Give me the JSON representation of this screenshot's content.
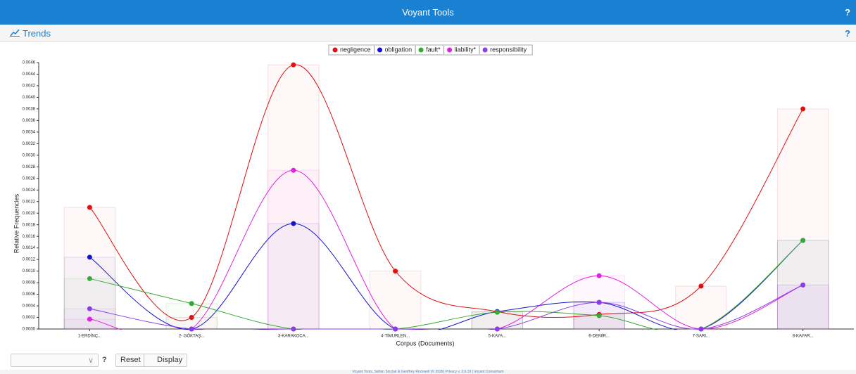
{
  "header": {
    "title": "Voyant Tools",
    "help": "?"
  },
  "panel": {
    "title": "Trends",
    "help": "?"
  },
  "chart_data": {
    "type": "line",
    "x_label": "Corpus (Documents)",
    "y_label": "Relative Frequencies",
    "categories": [
      "1-ERDİNÇ...",
      "2- GÖKTAŞ...",
      "3-KARAKOCA...",
      "4-TİMURLEN...",
      "5-KAYA...",
      "6-DEMİR...",
      "7-SARI...",
      "8-KAYAR..."
    ],
    "series": [
      {
        "name": "negligence",
        "color": "#e01010",
        "values": [
          0.0021,
          0.0002,
          0.00456,
          0.001,
          0.0003,
          0.00025,
          0.00074,
          0.0038
        ]
      },
      {
        "name": "obligation",
        "color": "#1414c8",
        "values": [
          0.00124,
          0,
          0.00182,
          0,
          0.0003,
          0.00046,
          0,
          0.00153
        ]
      },
      {
        "name": "fault*",
        "color": "#33aa33",
        "values": [
          0.00087,
          0.00044,
          0,
          0,
          0.00029,
          0.00023,
          0,
          0.00153
        ]
      },
      {
        "name": "liability*",
        "color": "#e020e0",
        "values": [
          0.00017,
          0,
          0.00274,
          0,
          0,
          0.00092,
          0,
          0.00076
        ]
      },
      {
        "name": "responsibility",
        "color": "#8a3ee8",
        "values": [
          0.00035,
          0,
          0,
          0,
          0,
          0.00046,
          0,
          0.00076
        ]
      }
    ],
    "ylim": [
      0,
      0.0046
    ],
    "yticks": [
      {
        "value": 0,
        "label": "0.0000"
      },
      {
        "value": 0.0002,
        "label": "0.0002"
      },
      {
        "value": 0.0004,
        "label": "0.0004"
      },
      {
        "value": 0.0006,
        "label": "0.0006"
      },
      {
        "value": 0.0008,
        "label": "0.0008"
      },
      {
        "value": 0.001,
        "label": "0.0010"
      },
      {
        "value": 0.0012,
        "label": "0.0012"
      },
      {
        "value": 0.0014,
        "label": "0.0014"
      },
      {
        "value": 0.0016,
        "label": "0.0016"
      },
      {
        "value": 0.0018,
        "label": "0.0018"
      },
      {
        "value": 0.002,
        "label": "0.0020"
      },
      {
        "value": 0.0022,
        "label": "0.0022"
      },
      {
        "value": 0.0024,
        "label": "0.0024"
      },
      {
        "value": 0.0026,
        "label": "0.0026"
      },
      {
        "value": 0.0028,
        "label": "0.0028"
      },
      {
        "value": 0.003,
        "label": "0.0030"
      },
      {
        "value": 0.0032,
        "label": "0.0032"
      },
      {
        "value": 0.0034,
        "label": "0.0034"
      },
      {
        "value": 0.0036,
        "label": "0.0036"
      },
      {
        "value": 0.0038,
        "label": "0.0038"
      },
      {
        "value": 0.004,
        "label": "0.0040"
      },
      {
        "value": 0.0042,
        "label": "0.0042"
      },
      {
        "value": 0.0044,
        "label": "0.0044"
      },
      {
        "value": 0.0046,
        "label": "0.0046"
      }
    ],
    "legend": "top"
  },
  "toolbar": {
    "help": "?",
    "reset": "Reset",
    "display": "Display"
  },
  "footer": {
    "text": "Voyant Tools, Stéfan Sinclair & Geoffrey Rockwell (© 2026) Privacy v. 2.6.19 | Voyant Consortium"
  }
}
